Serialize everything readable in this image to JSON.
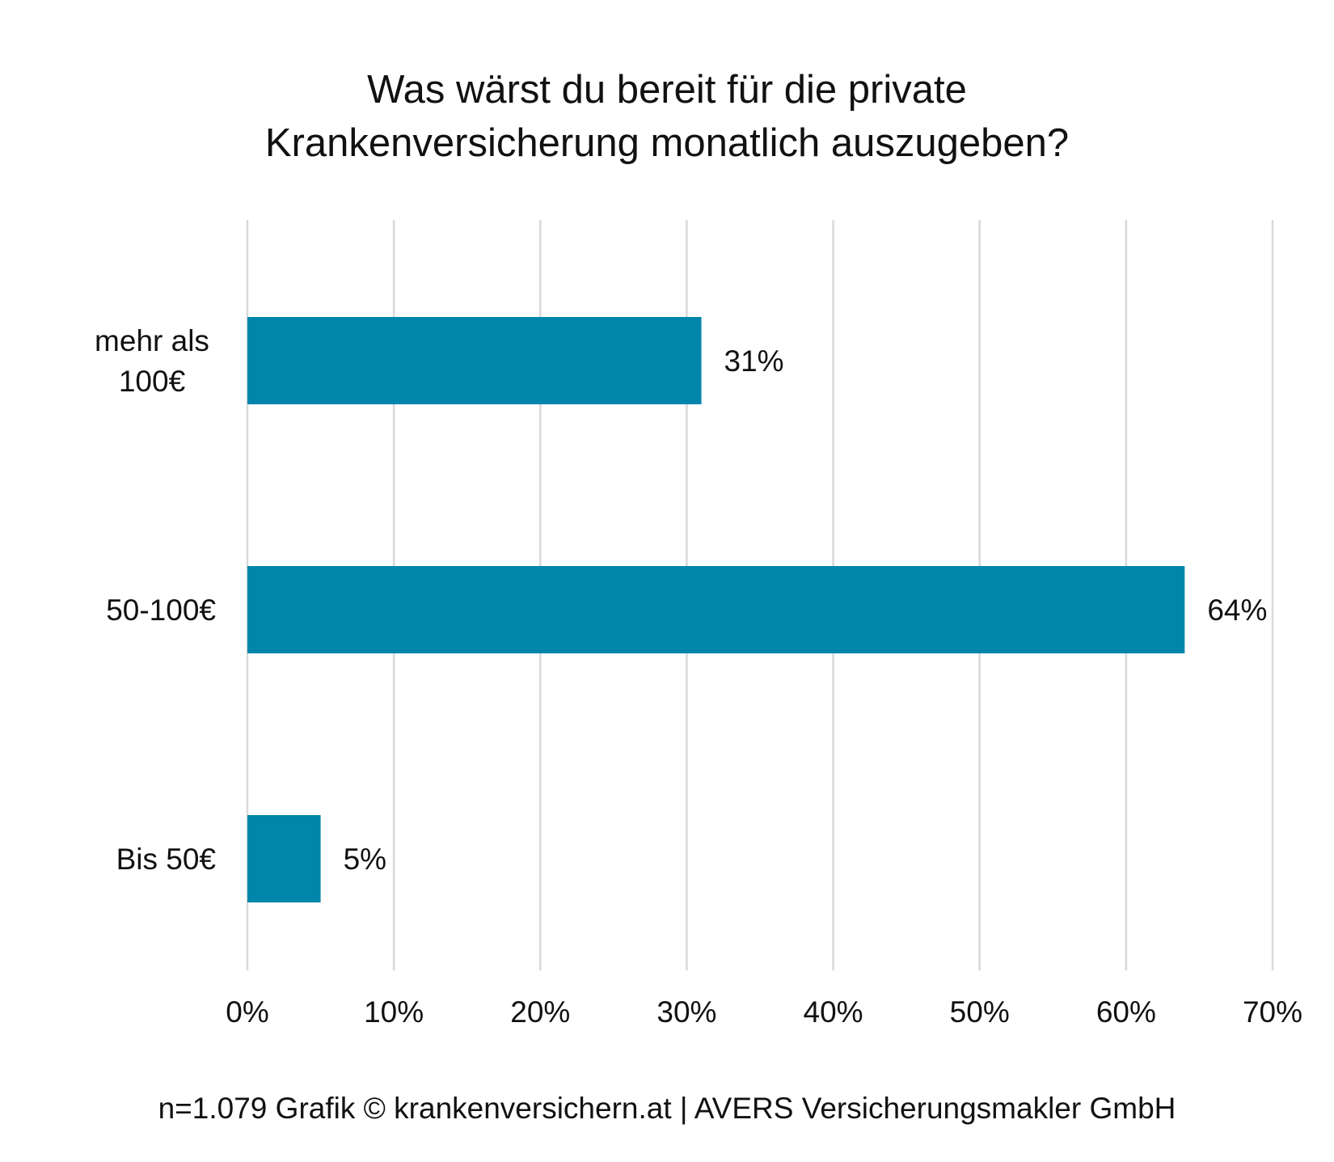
{
  "chart_data": {
    "type": "bar",
    "orientation": "horizontal",
    "title": [
      "Was wärst du bereit für die private",
      "Krankenversicherung monatlich auszugeben?"
    ],
    "categories": [
      {
        "lines": [
          "mehr als",
          "100€"
        ]
      },
      {
        "lines": [
          "50-100€"
        ]
      },
      {
        "lines": [
          "Bis 50€"
        ]
      }
    ],
    "values": [
      31,
      64,
      5
    ],
    "data_labels": [
      "31%",
      "64%",
      "5%"
    ],
    "xlim": [
      0,
      70
    ],
    "xticks": [
      0,
      10,
      20,
      30,
      40,
      50,
      60,
      70
    ],
    "xtick_labels": [
      "0%",
      "10%",
      "20%",
      "30%",
      "40%",
      "50%",
      "60%",
      "70%"
    ],
    "grid": "vertical",
    "legend": "none",
    "bar_color": "#0086AB",
    "grid_color": "#D9D9D9"
  },
  "footer": "n=1.079 Grafik © krankenversichern.at | AVERS Versicherungsmakler GmbH"
}
